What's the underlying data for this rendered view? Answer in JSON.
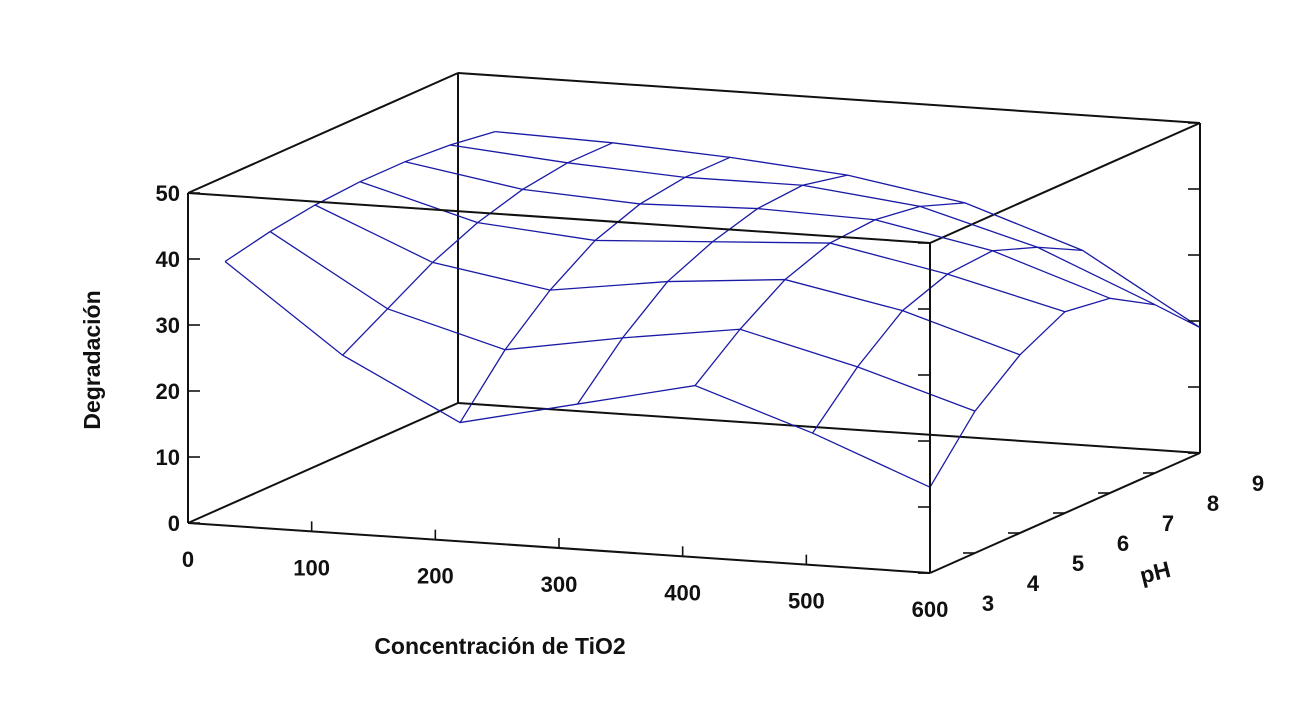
{
  "chart_data": {
    "type": "surface3d",
    "title": "",
    "xlabel": "Concentración de TiO2",
    "ylabel": "pH",
    "zlabel": "Degradación",
    "x_ticks": [
      "0",
      "100",
      "200",
      "300",
      "400",
      "500",
      "600"
    ],
    "y_ticks": [
      "3",
      "4",
      "5",
      "6",
      "7",
      "8",
      "9"
    ],
    "z_ticks": [
      "0",
      "10",
      "20",
      "30",
      "40",
      "50"
    ],
    "xlim": [
      0,
      600
    ],
    "ylim": [
      3,
      9
    ],
    "zlim": [
      0,
      50
    ],
    "grid": false,
    "surface_color": "#1a1aa6",
    "x": [
      30,
      125,
      220,
      315,
      410,
      505,
      600
    ],
    "y": [
      3,
      4,
      5,
      6,
      7,
      8,
      9
    ],
    "z": [
      [
        40.0,
        27.0,
        18.0,
        22.0,
        26.0,
        20.0,
        13.0
      ],
      [
        41.5,
        31.0,
        26.0,
        29.0,
        31.5,
        27.0,
        21.5
      ],
      [
        42.5,
        35.0,
        32.0,
        34.5,
        36.0,
        32.5,
        27.0
      ],
      [
        43.0,
        38.0,
        36.5,
        37.5,
        38.5,
        35.0,
        30.5
      ],
      [
        43.0,
        40.0,
        39.0,
        39.5,
        39.0,
        35.5,
        29.5
      ],
      [
        42.5,
        41.0,
        40.0,
        40.0,
        38.0,
        33.0,
        25.5
      ],
      [
        41.5,
        41.0,
        40.0,
        38.5,
        35.5,
        29.5,
        19.0
      ]
    ]
  }
}
